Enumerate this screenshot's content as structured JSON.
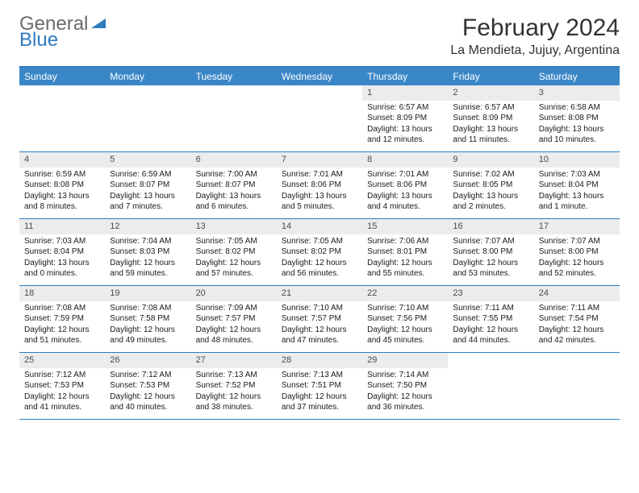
{
  "logo": {
    "part1": "General",
    "part2": "Blue"
  },
  "title": "February 2024",
  "location": "La Mendieta, Jujuy, Argentina",
  "weekdays": [
    "Sunday",
    "Monday",
    "Tuesday",
    "Wednesday",
    "Thursday",
    "Friday",
    "Saturday"
  ],
  "colors": {
    "header_bg": "#3a87c7",
    "border": "#2f7bbf",
    "daynum_bg": "#ececec",
    "text": "#1a1a1a"
  },
  "weeks": [
    [
      {
        "empty": true
      },
      {
        "empty": true
      },
      {
        "empty": true
      },
      {
        "empty": true
      },
      {
        "num": "1",
        "sunrise": "Sunrise: 6:57 AM",
        "sunset": "Sunset: 8:09 PM",
        "daylight": "Daylight: 13 hours and 12 minutes."
      },
      {
        "num": "2",
        "sunrise": "Sunrise: 6:57 AM",
        "sunset": "Sunset: 8:09 PM",
        "daylight": "Daylight: 13 hours and 11 minutes."
      },
      {
        "num": "3",
        "sunrise": "Sunrise: 6:58 AM",
        "sunset": "Sunset: 8:08 PM",
        "daylight": "Daylight: 13 hours and 10 minutes."
      }
    ],
    [
      {
        "num": "4",
        "sunrise": "Sunrise: 6:59 AM",
        "sunset": "Sunset: 8:08 PM",
        "daylight": "Daylight: 13 hours and 8 minutes."
      },
      {
        "num": "5",
        "sunrise": "Sunrise: 6:59 AM",
        "sunset": "Sunset: 8:07 PM",
        "daylight": "Daylight: 13 hours and 7 minutes."
      },
      {
        "num": "6",
        "sunrise": "Sunrise: 7:00 AM",
        "sunset": "Sunset: 8:07 PM",
        "daylight": "Daylight: 13 hours and 6 minutes."
      },
      {
        "num": "7",
        "sunrise": "Sunrise: 7:01 AM",
        "sunset": "Sunset: 8:06 PM",
        "daylight": "Daylight: 13 hours and 5 minutes."
      },
      {
        "num": "8",
        "sunrise": "Sunrise: 7:01 AM",
        "sunset": "Sunset: 8:06 PM",
        "daylight": "Daylight: 13 hours and 4 minutes."
      },
      {
        "num": "9",
        "sunrise": "Sunrise: 7:02 AM",
        "sunset": "Sunset: 8:05 PM",
        "daylight": "Daylight: 13 hours and 2 minutes."
      },
      {
        "num": "10",
        "sunrise": "Sunrise: 7:03 AM",
        "sunset": "Sunset: 8:04 PM",
        "daylight": "Daylight: 13 hours and 1 minute."
      }
    ],
    [
      {
        "num": "11",
        "sunrise": "Sunrise: 7:03 AM",
        "sunset": "Sunset: 8:04 PM",
        "daylight": "Daylight: 13 hours and 0 minutes."
      },
      {
        "num": "12",
        "sunrise": "Sunrise: 7:04 AM",
        "sunset": "Sunset: 8:03 PM",
        "daylight": "Daylight: 12 hours and 59 minutes."
      },
      {
        "num": "13",
        "sunrise": "Sunrise: 7:05 AM",
        "sunset": "Sunset: 8:02 PM",
        "daylight": "Daylight: 12 hours and 57 minutes."
      },
      {
        "num": "14",
        "sunrise": "Sunrise: 7:05 AM",
        "sunset": "Sunset: 8:02 PM",
        "daylight": "Daylight: 12 hours and 56 minutes."
      },
      {
        "num": "15",
        "sunrise": "Sunrise: 7:06 AM",
        "sunset": "Sunset: 8:01 PM",
        "daylight": "Daylight: 12 hours and 55 minutes."
      },
      {
        "num": "16",
        "sunrise": "Sunrise: 7:07 AM",
        "sunset": "Sunset: 8:00 PM",
        "daylight": "Daylight: 12 hours and 53 minutes."
      },
      {
        "num": "17",
        "sunrise": "Sunrise: 7:07 AM",
        "sunset": "Sunset: 8:00 PM",
        "daylight": "Daylight: 12 hours and 52 minutes."
      }
    ],
    [
      {
        "num": "18",
        "sunrise": "Sunrise: 7:08 AM",
        "sunset": "Sunset: 7:59 PM",
        "daylight": "Daylight: 12 hours and 51 minutes."
      },
      {
        "num": "19",
        "sunrise": "Sunrise: 7:08 AM",
        "sunset": "Sunset: 7:58 PM",
        "daylight": "Daylight: 12 hours and 49 minutes."
      },
      {
        "num": "20",
        "sunrise": "Sunrise: 7:09 AM",
        "sunset": "Sunset: 7:57 PM",
        "daylight": "Daylight: 12 hours and 48 minutes."
      },
      {
        "num": "21",
        "sunrise": "Sunrise: 7:10 AM",
        "sunset": "Sunset: 7:57 PM",
        "daylight": "Daylight: 12 hours and 47 minutes."
      },
      {
        "num": "22",
        "sunrise": "Sunrise: 7:10 AM",
        "sunset": "Sunset: 7:56 PM",
        "daylight": "Daylight: 12 hours and 45 minutes."
      },
      {
        "num": "23",
        "sunrise": "Sunrise: 7:11 AM",
        "sunset": "Sunset: 7:55 PM",
        "daylight": "Daylight: 12 hours and 44 minutes."
      },
      {
        "num": "24",
        "sunrise": "Sunrise: 7:11 AM",
        "sunset": "Sunset: 7:54 PM",
        "daylight": "Daylight: 12 hours and 42 minutes."
      }
    ],
    [
      {
        "num": "25",
        "sunrise": "Sunrise: 7:12 AM",
        "sunset": "Sunset: 7:53 PM",
        "daylight": "Daylight: 12 hours and 41 minutes."
      },
      {
        "num": "26",
        "sunrise": "Sunrise: 7:12 AM",
        "sunset": "Sunset: 7:53 PM",
        "daylight": "Daylight: 12 hours and 40 minutes."
      },
      {
        "num": "27",
        "sunrise": "Sunrise: 7:13 AM",
        "sunset": "Sunset: 7:52 PM",
        "daylight": "Daylight: 12 hours and 38 minutes."
      },
      {
        "num": "28",
        "sunrise": "Sunrise: 7:13 AM",
        "sunset": "Sunset: 7:51 PM",
        "daylight": "Daylight: 12 hours and 37 minutes."
      },
      {
        "num": "29",
        "sunrise": "Sunrise: 7:14 AM",
        "sunset": "Sunset: 7:50 PM",
        "daylight": "Daylight: 12 hours and 36 minutes."
      },
      {
        "empty": true
      },
      {
        "empty": true
      }
    ]
  ]
}
